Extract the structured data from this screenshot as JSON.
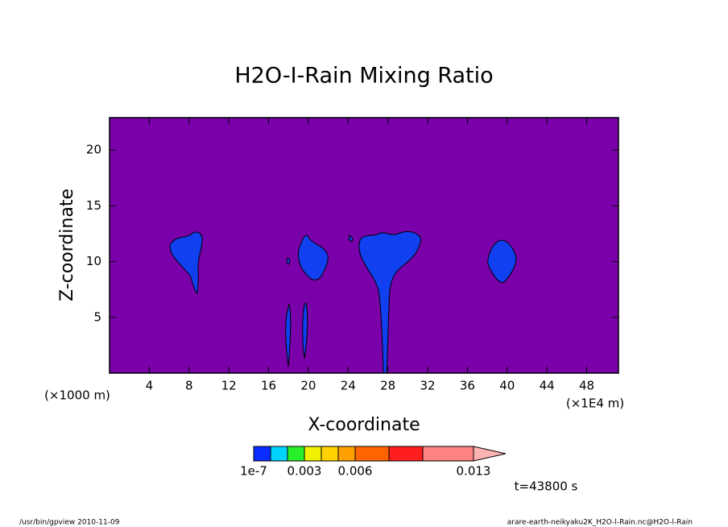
{
  "chart_data": {
    "type": "contour",
    "title": "H2O-I-Rain Mixing Ratio",
    "x_label": "X-coordinate",
    "y_label": "Z-coordinate",
    "x_unit_left": "(×1000 m)",
    "x_unit_right": "(×1E4 m)",
    "time_label": "t=43800 s",
    "xlim": [
      0,
      51.2
    ],
    "ylim": [
      0,
      22.9
    ],
    "xticks": [
      4,
      8,
      12,
      16,
      20,
      24,
      28,
      32,
      36,
      40,
      44,
      48
    ],
    "yticks": [
      5,
      10,
      15,
      20
    ],
    "background_color": "#7a00aa",
    "fill_color": "#1040f0",
    "colorbar": {
      "levels": [
        1e-07,
        0.001,
        0.002,
        0.003,
        0.004,
        0.005,
        0.006,
        0.008,
        0.01,
        0.013
      ],
      "colors": [
        "#0a2cff",
        "#00d2ff",
        "#28f028",
        "#f0f000",
        "#ffd200",
        "#ffa000",
        "#ff6400",
        "#ff1e1e",
        "#ff8282"
      ],
      "extend_color": "#ffb4b4",
      "ticks": [
        1e-07,
        0.003,
        0.006,
        0.013
      ]
    },
    "footer_left": "/usr/bin/gpview  2010-11-09",
    "footer_right": "arare-earth-neikyaku2K_H2O-l-Rain.nc@H2O-l-Rain"
  }
}
